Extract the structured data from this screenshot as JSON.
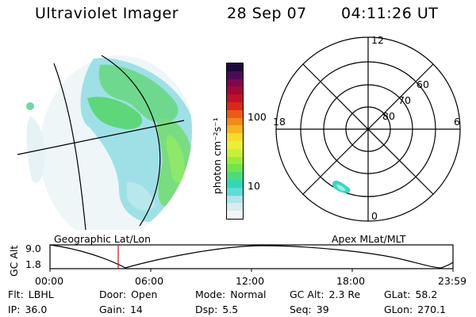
{
  "header": {
    "title": "Ultraviolet Imager",
    "date": "28 Sep 07",
    "time": "04:11:26 UT"
  },
  "colorbar": {
    "unit_label": "photon cm⁻²s⁻¹",
    "ticks": [
      "100",
      "10"
    ],
    "colors": [
      "#f2f5f8",
      "#d6ecef",
      "#b0e3ea",
      "#5fdcd6",
      "#35d6b6",
      "#4cdc7a",
      "#72e44e",
      "#9aec3c",
      "#c8f03a",
      "#eaf03a",
      "#f7dc2a",
      "#f8b420",
      "#f48a18",
      "#e85a18",
      "#d8281c",
      "#c0102a",
      "#a00a3a",
      "#7a0a4c",
      "#4a0c56",
      "#1c0a3a"
    ]
  },
  "polar_plot": {
    "mlt_labels": {
      "top": "12",
      "left": "18",
      "right": "6",
      "bottom": "0"
    },
    "lat_labels": [
      "60",
      "70",
      "80"
    ]
  },
  "timeline": {
    "left_label": "Geographic Lat/Lon",
    "right_label": "Apex MLat/MLT",
    "axis_label": "GC Alt",
    "y_ticks": [
      "9.0",
      "1.8"
    ],
    "x_ticks": [
      "00:00",
      "06:00",
      "12:00",
      "18:00",
      "23:59"
    ],
    "marker_time": "04:11"
  },
  "info_rows": [
    [
      {
        "label": "Flt:",
        "value": "LBHL"
      },
      {
        "label": "Door:",
        "value": "Open"
      },
      {
        "label": "Mode:",
        "value": "Normal"
      },
      {
        "label": "GC Alt:",
        "value": "2.3 Re"
      },
      {
        "label": "GLat:",
        "value": "58.2"
      }
    ],
    [
      {
        "label": "IP:",
        "value": "36.0"
      },
      {
        "label": "Gain:",
        "value": "14"
      },
      {
        "label": "Dsp:",
        "value": "5.5"
      },
      {
        "label": "Seq:",
        "value": "39"
      },
      {
        "label": "GLon:",
        "value": "270.1"
      }
    ]
  ]
}
